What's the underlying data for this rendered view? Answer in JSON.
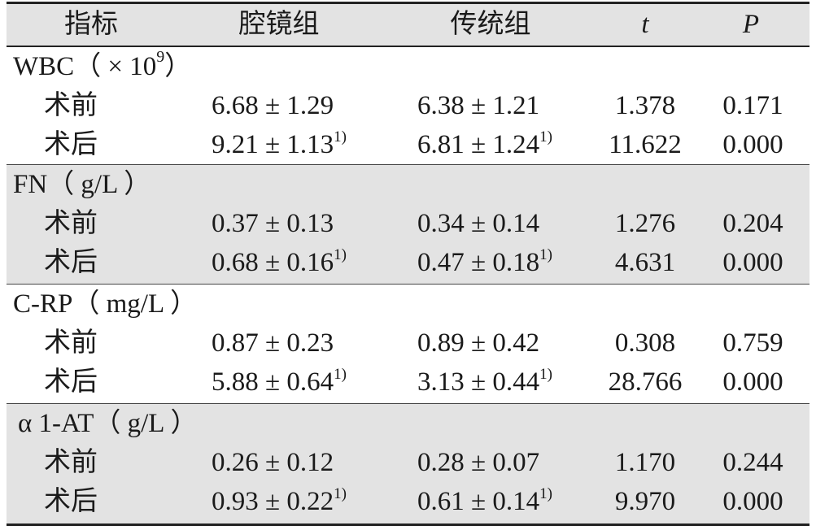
{
  "header": {
    "col_indicator": "指标",
    "col_laparoscopic": "腔镜组",
    "col_traditional": "传统组",
    "col_t": "t",
    "col_p": "P"
  },
  "groups": [
    {
      "label": "WBC（ × 10",
      "label_sup": "9",
      "label_tail": "）",
      "rows": [
        {
          "name": "术前",
          "lap": "6.68 ± 1.29",
          "lap_sup": "",
          "trad": "6.38 ± 1.21",
          "trad_sup": "",
          "t": "1.378",
          "p": "0.171"
        },
        {
          "name": "术后",
          "lap": "9.21 ± 1.13",
          "lap_sup": "1)",
          "trad": "6.81 ± 1.24",
          "trad_sup": "1)",
          "t": "11.622",
          "p": "0.000"
        }
      ]
    },
    {
      "label": "FN（ g/L ）",
      "label_sup": "",
      "label_tail": "",
      "rows": [
        {
          "name": "术前",
          "lap": "0.37 ± 0.13",
          "lap_sup": "",
          "trad": "0.34 ± 0.14",
          "trad_sup": "",
          "t": "1.276",
          "p": "0.204"
        },
        {
          "name": "术后",
          "lap": "0.68 ± 0.16",
          "lap_sup": "1)",
          "trad": "0.47 ± 0.18",
          "trad_sup": "1)",
          "t": "4.631",
          "p": "0.000"
        }
      ]
    },
    {
      "label": "C-RP（ mg/L ）",
      "label_sup": "",
      "label_tail": "",
      "rows": [
        {
          "name": "术前",
          "lap": "0.87 ± 0.23",
          "lap_sup": "",
          "trad": "0.89 ± 0.42",
          "trad_sup": "",
          "t": "0.308",
          "p": "0.759"
        },
        {
          "name": "术后",
          "lap": "5.88 ± 0.64",
          "lap_sup": "1)",
          "trad": "3.13 ± 0.44",
          "trad_sup": "1)",
          "t": "28.766",
          "p": "0.000"
        }
      ]
    },
    {
      "label": "α 1-AT（ g/L ）",
      "label_sup": "",
      "label_tail": "",
      "rows": [
        {
          "name": "术前",
          "lap": "0.26 ± 0.12",
          "lap_sup": "",
          "trad": "0.28 ± 0.07",
          "trad_sup": "",
          "t": "1.170",
          "p": "0.244"
        },
        {
          "name": "术后",
          "lap": "0.93 ± 0.22",
          "lap_sup": "1)",
          "trad": "0.61 ± 0.14",
          "trad_sup": "1)",
          "t": "9.970",
          "p": "0.000"
        }
      ]
    }
  ]
}
